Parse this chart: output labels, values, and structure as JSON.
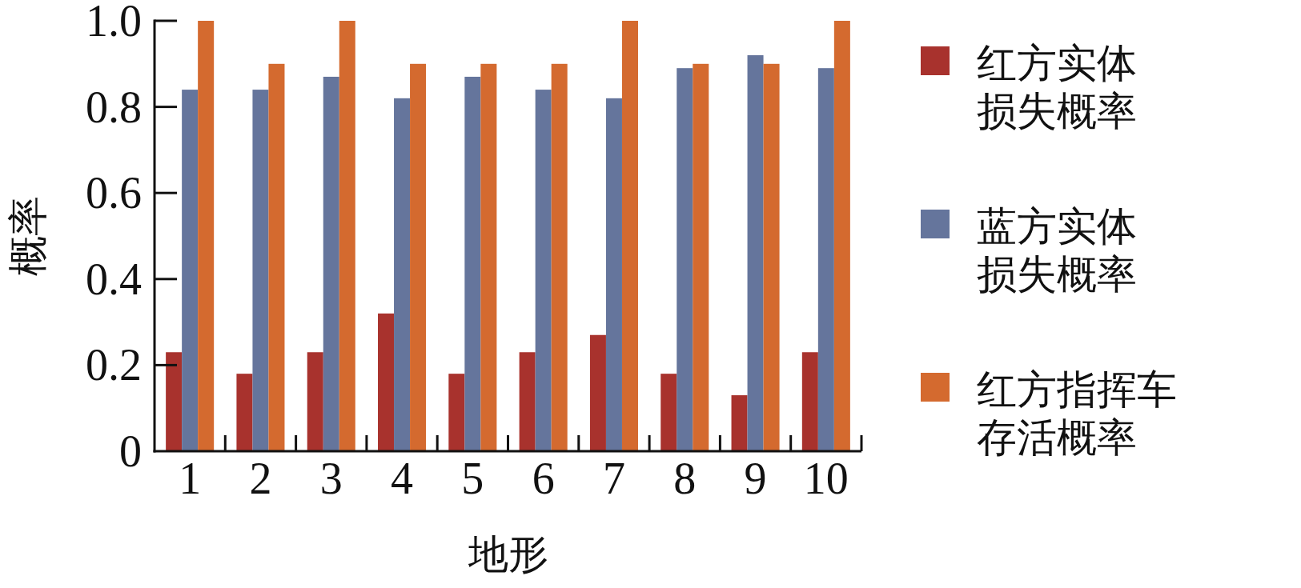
{
  "chart_data": {
    "type": "bar",
    "xlabel": "地形",
    "ylabel": "概率",
    "categories": [
      "1",
      "2",
      "3",
      "4",
      "5",
      "6",
      "7",
      "8",
      "9",
      "10"
    ],
    "series": [
      {
        "name": "红方实体损失概率",
        "color": "#a8322d",
        "values": [
          0.23,
          0.18,
          0.23,
          0.32,
          0.18,
          0.23,
          0.27,
          0.18,
          0.13,
          0.23
        ]
      },
      {
        "name": "蓝方实体损失概率",
        "color": "#65759c",
        "values": [
          0.84,
          0.84,
          0.87,
          0.82,
          0.87,
          0.84,
          0.82,
          0.89,
          0.92,
          0.89
        ]
      },
      {
        "name": "红方指挥车存活概率",
        "color": "#d46a2f",
        "values": [
          1.0,
          0.9,
          1.0,
          0.9,
          0.9,
          0.9,
          1.0,
          0.9,
          0.9,
          1.0
        ]
      }
    ],
    "ylim": [
      0,
      1.0
    ],
    "yticks": [
      0,
      {
        "value": 0.2,
        "label": "0.2"
      },
      {
        "value": 0.4,
        "label": "0.4"
      },
      {
        "value": 0.6,
        "label": "0.6"
      },
      {
        "value": 0.8,
        "label": "0.8"
      },
      {
        "value": 1.0,
        "label": "1.0"
      }
    ],
    "grid": false,
    "legend": "right"
  }
}
